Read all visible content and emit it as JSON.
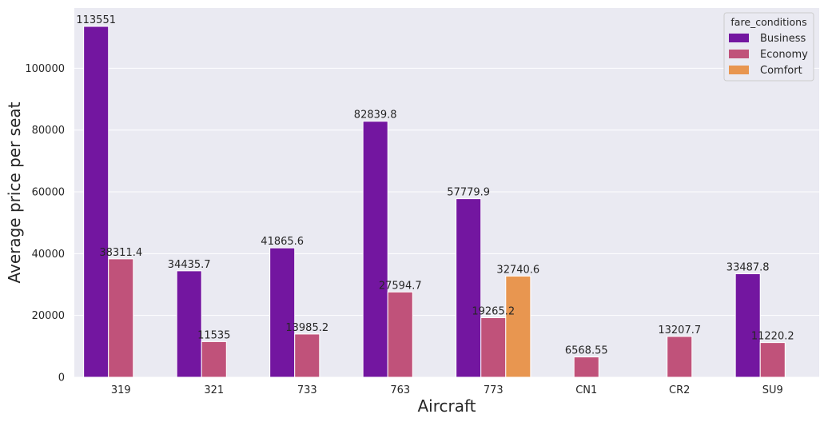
{
  "chart_data": {
    "type": "bar",
    "title": "",
    "xlabel": "Aircraft",
    "ylabel": "Average price per seat",
    "categories": [
      "319",
      "321",
      "733",
      "763",
      "773",
      "CN1",
      "CR2",
      "SU9"
    ],
    "ylim": [
      0,
      119500
    ],
    "yticks": [
      0,
      20000,
      40000,
      60000,
      80000,
      100000
    ],
    "grid": true,
    "legend": {
      "title": "fare_conditions",
      "position": "top-right"
    },
    "series": [
      {
        "name": "Business",
        "color": "#6a00a8",
        "values": [
          113551,
          34435.7,
          41865.6,
          82839.8,
          57779.9,
          null,
          null,
          33487.8
        ],
        "labels": [
          "113551",
          "34435.7",
          "41865.6",
          "82839.8",
          "57779.9",
          "",
          "",
          "33487.8"
        ]
      },
      {
        "name": "Economy",
        "color": "#b12a90",
        "values": [
          38311.4,
          11535,
          13985.2,
          27594.7,
          19265.2,
          6568.55,
          13207.7,
          11220.2
        ],
        "labels": [
          "38311.4",
          "11535",
          "13985.2",
          "27594.7",
          "19265.2",
          "6568.55",
          "13207.7",
          "11220.2"
        ]
      },
      {
        "name": "Comfort",
        "color": "#e16462",
        "values": [
          null,
          null,
          null,
          null,
          32740.6,
          null,
          null,
          null
        ],
        "labels": [
          "",
          "",
          "",
          "",
          "32740.6",
          "",
          "",
          ""
        ]
      }
    ],
    "colors": {
      "plot_background": "#eaeaf2",
      "grid": "#ffffff",
      "Business": "#7316a0",
      "Economy": "#c0527a",
      "Comfort": "#e89650"
    }
  }
}
